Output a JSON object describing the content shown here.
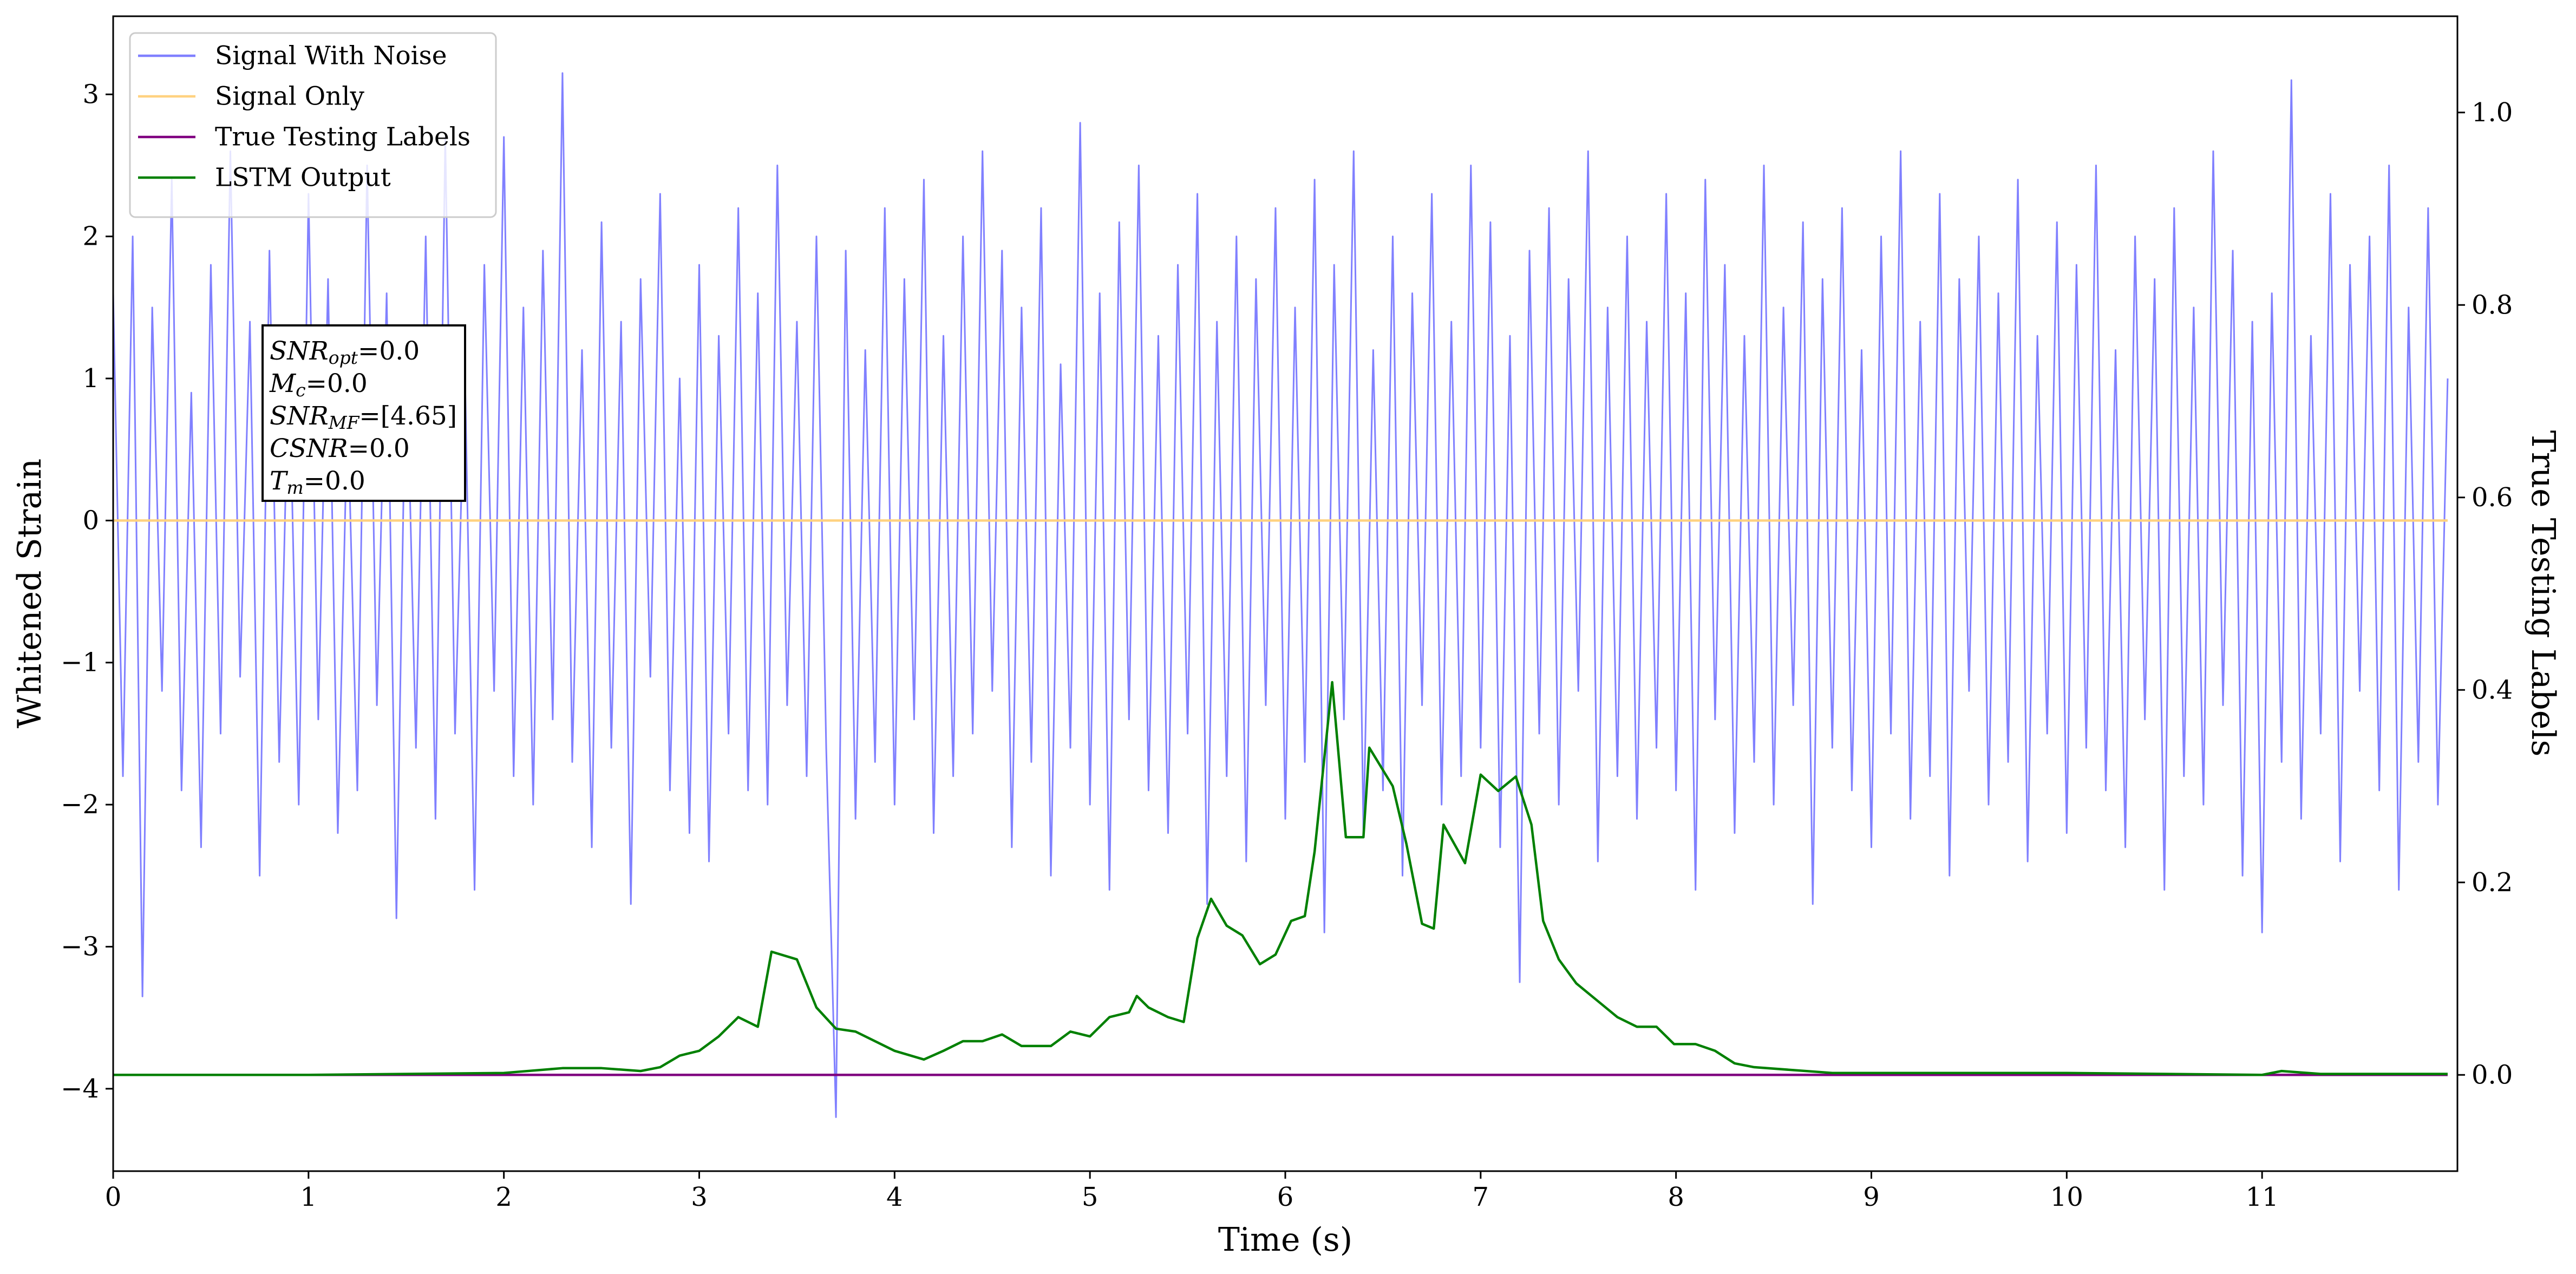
{
  "chart_data": {
    "type": "line",
    "xlabel": "Time (s)",
    "ylabel": "Whitened Strain",
    "y2label": "True Testing Labels",
    "xlim": [
      0,
      12
    ],
    "ylim": [
      -4.58,
      3.55
    ],
    "y2lim": [
      -0.1,
      1.1
    ],
    "xticks": [
      0,
      1,
      2,
      3,
      4,
      5,
      6,
      7,
      8,
      9,
      10,
      11
    ],
    "yticks": [
      {
        "value": -4,
        "label": "−4"
      },
      {
        "value": -3,
        "label": "−3"
      },
      {
        "value": -2,
        "label": "−2"
      },
      {
        "value": -1,
        "label": "−1"
      },
      0,
      1,
      2,
      3
    ],
    "y2ticks": [
      {
        "value": 0,
        "label": "0.0"
      },
      0.2,
      0.4,
      0.6,
      0.8,
      {
        "value": 1,
        "label": "1.0"
      }
    ],
    "legend": "upper left",
    "annotations": [
      {
        "symbol": "SNR",
        "subscript": "opt",
        "text": "=0.0"
      },
      {
        "symbol": "M",
        "subscript": "c",
        "text": "=0.0"
      },
      {
        "symbol": "SNR",
        "subscript": "MF",
        "text": "=[4.65]"
      },
      {
        "symbol": "CSNR",
        "text": "=0.0"
      },
      {
        "symbol": "T",
        "subscript": "m",
        "text": "=0.0"
      }
    ],
    "series": [
      {
        "name": "Signal With Noise",
        "color": "#8080ff",
        "x": [
          0,
          0.05,
          0.1,
          0.15,
          0.2,
          0.25,
          0.3,
          0.35,
          0.4,
          0.45,
          0.5,
          0.55,
          0.6,
          0.65,
          0.7,
          0.75,
          0.8,
          0.85,
          0.9,
          0.95,
          1,
          1.05,
          1.1,
          1.15,
          1.2,
          1.25,
          1.3,
          1.35,
          1.4,
          1.45,
          1.5,
          1.55,
          1.6,
          1.65,
          1.7,
          1.75,
          1.8,
          1.85,
          1.9,
          1.95,
          2,
          2.05,
          2.1,
          2.15,
          2.2,
          2.25,
          2.3,
          2.35,
          2.4,
          2.45,
          2.5,
          2.55,
          2.6,
          2.65,
          2.7,
          2.75,
          2.8,
          2.85,
          2.9,
          2.95,
          3,
          3.05,
          3.1,
          3.15,
          3.2,
          3.25,
          3.3,
          3.35,
          3.4,
          3.45,
          3.5,
          3.55,
          3.6,
          3.65,
          3.7,
          3.75,
          3.8,
          3.85,
          3.9,
          3.95,
          4,
          4.05,
          4.1,
          4.15,
          4.2,
          4.25,
          4.3,
          4.35,
          4.4,
          4.45,
          4.5,
          4.55,
          4.6,
          4.65,
          4.7,
          4.75,
          4.8,
          4.85,
          4.9,
          4.95,
          5,
          5.05,
          5.1,
          5.15,
          5.2,
          5.25,
          5.3,
          5.35,
          5.4,
          5.45,
          5.5,
          5.55,
          5.6,
          5.65,
          5.7,
          5.75,
          5.8,
          5.85,
          5.9,
          5.95,
          6,
          6.05,
          6.1,
          6.15,
          6.2,
          6.25,
          6.3,
          6.35,
          6.4,
          6.45,
          6.5,
          6.55,
          6.6,
          6.65,
          6.7,
          6.75,
          6.8,
          6.85,
          6.9,
          6.95,
          7,
          7.05,
          7.1,
          7.15,
          7.2,
          7.25,
          7.3,
          7.35,
          7.4,
          7.45,
          7.5,
          7.55,
          7.6,
          7.65,
          7.7,
          7.75,
          7.8,
          7.85,
          7.9,
          7.95,
          8,
          8.05,
          8.1,
          8.15,
          8.2,
          8.25,
          8.3,
          8.35,
          8.4,
          8.45,
          8.5,
          8.55,
          8.6,
          8.65,
          8.7,
          8.75,
          8.8,
          8.85,
          8.9,
          8.95,
          9,
          9.05,
          9.1,
          9.15,
          9.2,
          9.25,
          9.3,
          9.35,
          9.4,
          9.45,
          9.5,
          9.55,
          9.6,
          9.65,
          9.7,
          9.75,
          9.8,
          9.85,
          9.9,
          9.95,
          10,
          10.05,
          10.1,
          10.15,
          10.2,
          10.25,
          10.3,
          10.35,
          10.4,
          10.45,
          10.5,
          10.55,
          10.6,
          10.65,
          10.7,
          10.75,
          10.8,
          10.85,
          10.9,
          10.95,
          11,
          11.05,
          11.1,
          11.15,
          11.2,
          11.25,
          11.3,
          11.35,
          11.4,
          11.45,
          11.5,
          11.55,
          11.6,
          11.65,
          11.7,
          11.75,
          11.8,
          11.85,
          11.9,
          11.95
        ],
        "values": [
          1.6,
          -1.8,
          2.0,
          -3.35,
          1.5,
          -1.2,
          2.4,
          -1.9,
          0.9,
          -2.3,
          1.8,
          -1.5,
          2.6,
          -1.1,
          1.4,
          -2.5,
          1.9,
          -1.7,
          1.2,
          -2.0,
          2.3,
          -1.4,
          1.7,
          -2.2,
          0.8,
          -1.9,
          2.5,
          -1.3,
          1.6,
          -2.8,
          1.3,
          -1.6,
          2.0,
          -2.1,
          2.7,
          -1.5,
          1.1,
          -2.6,
          1.8,
          -1.2,
          2.7,
          -1.8,
          1.5,
          -2.0,
          1.9,
          -1.4,
          3.15,
          -1.7,
          1.2,
          -2.3,
          2.1,
          -1.6,
          1.4,
          -2.7,
          1.7,
          -1.1,
          2.3,
          -1.9,
          1.0,
          -2.2,
          1.8,
          -2.4,
          1.3,
          -1.5,
          2.2,
          -1.9,
          1.6,
          -2.0,
          2.5,
          -1.3,
          1.4,
          -1.8,
          2.0,
          -1.6,
          -4.2,
          1.9,
          -2.1,
          1.2,
          -1.7,
          2.2,
          -2.0,
          1.7,
          -1.4,
          2.4,
          -2.2,
          1.3,
          -1.8,
          2.0,
          -1.5,
          2.6,
          -1.2,
          1.9,
          -2.3,
          1.5,
          -1.7,
          2.2,
          -2.5,
          1.1,
          -1.6,
          2.8,
          -2.0,
          1.6,
          -2.6,
          2.1,
          -1.4,
          2.5,
          -1.9,
          1.3,
          -2.2,
          1.8,
          -1.5,
          2.3,
          -2.7,
          1.4,
          -1.8,
          2.0,
          -2.4,
          1.7,
          -1.3,
          2.2,
          -2.1,
          1.5,
          -1.7,
          2.4,
          -2.9,
          1.8,
          -1.4,
          2.6,
          -2.2,
          1.2,
          -1.9,
          2.0,
          -2.5,
          1.6,
          -1.3,
          2.3,
          -2.0,
          1.4,
          -1.8,
          2.5,
          -1.6,
          2.1,
          -2.3,
          1.3,
          -3.25,
          1.9,
          -1.5,
          2.2,
          -2.0,
          1.7,
          -1.2,
          2.6,
          -2.4,
          1.5,
          -1.8,
          2.0,
          -2.1,
          1.4,
          -1.6,
          2.3,
          -1.9,
          1.6,
          -2.6,
          2.4,
          -1.4,
          1.8,
          -2.2,
          1.3,
          -1.7,
          2.5,
          -2.0,
          1.5,
          -1.3,
          2.1,
          -2.7,
          1.7,
          -1.6,
          2.2,
          -1.9,
          1.2,
          -2.3,
          2.0,
          -1.5,
          2.6,
          -2.1,
          1.4,
          -1.8,
          2.3,
          -2.5,
          1.7,
          -1.2,
          2.0,
          -2.0,
          1.6,
          -1.7,
          2.4,
          -2.4,
          1.3,
          -1.5,
          2.1,
          -2.2,
          1.8,
          -1.6,
          2.5,
          -1.9,
          1.2,
          -2.3,
          2.0,
          -1.4,
          1.7,
          -2.6,
          2.2,
          -1.8,
          1.5,
          -2.0,
          2.6,
          -1.3,
          1.9,
          -2.5,
          1.4,
          -2.9,
          1.6,
          -1.7,
          3.1,
          -2.1,
          1.3,
          -1.5,
          2.3,
          -2.4,
          1.8,
          -1.2,
          2.0,
          -1.9,
          2.5,
          -2.6,
          1.5,
          -1.7,
          2.2,
          -2.0,
          1.0
        ]
      },
      {
        "name": "Signal Only",
        "color": "#ffd280",
        "x": [
          0,
          11.95
        ],
        "values": [
          0,
          0
        ]
      },
      {
        "name": "True Testing Labels",
        "color": "#800080",
        "axis": "y2",
        "x": [
          0,
          11.95
        ],
        "values": [
          0,
          0
        ]
      },
      {
        "name": "LSTM Output",
        "color": "#008000",
        "axis": "y2",
        "x": [
          0,
          1,
          2,
          2.3,
          2.5,
          2.7,
          2.8,
          2.9,
          3.0,
          3.1,
          3.2,
          3.3,
          3.37,
          3.5,
          3.6,
          3.7,
          3.8,
          4.0,
          4.15,
          4.25,
          4.35,
          4.45,
          4.55,
          4.65,
          4.8,
          4.9,
          5.0,
          5.1,
          5.2,
          5.24,
          5.3,
          5.4,
          5.48,
          5.55,
          5.62,
          5.7,
          5.78,
          5.87,
          5.95,
          6.03,
          6.1,
          6.15,
          6.24,
          6.31,
          6.4,
          6.43,
          6.55,
          6.62,
          6.7,
          6.76,
          6.81,
          6.92,
          7.0,
          7.09,
          7.18,
          7.26,
          7.32,
          7.4,
          7.49,
          7.61,
          7.7,
          7.8,
          7.9,
          7.99,
          8.1,
          8.2,
          8.3,
          8.4,
          8.6,
          8.8,
          9.0,
          10.0,
          11.0,
          11.1,
          11.3,
          11.95
        ],
        "values": [
          0,
          0,
          0.002,
          0.007,
          0.007,
          0.004,
          0.008,
          0.02,
          0.025,
          0.04,
          0.06,
          0.05,
          0.128,
          0.12,
          0.07,
          0.048,
          0.045,
          0.025,
          0.016,
          0.025,
          0.035,
          0.035,
          0.042,
          0.03,
          0.03,
          0.045,
          0.04,
          0.06,
          0.065,
          0.082,
          0.07,
          0.06,
          0.055,
          0.142,
          0.183,
          0.155,
          0.145,
          0.115,
          0.125,
          0.16,
          0.165,
          0.232,
          0.408,
          0.247,
          0.247,
          0.34,
          0.3,
          0.24,
          0.157,
          0.152,
          0.26,
          0.22,
          0.312,
          0.295,
          0.31,
          0.26,
          0.16,
          0.12,
          0.095,
          0.075,
          0.06,
          0.05,
          0.05,
          0.032,
          0.032,
          0.025,
          0.012,
          0.008,
          0.005,
          0.002,
          0.002,
          0.002,
          0,
          0.004,
          0.001,
          0.001
        ]
      }
    ]
  }
}
